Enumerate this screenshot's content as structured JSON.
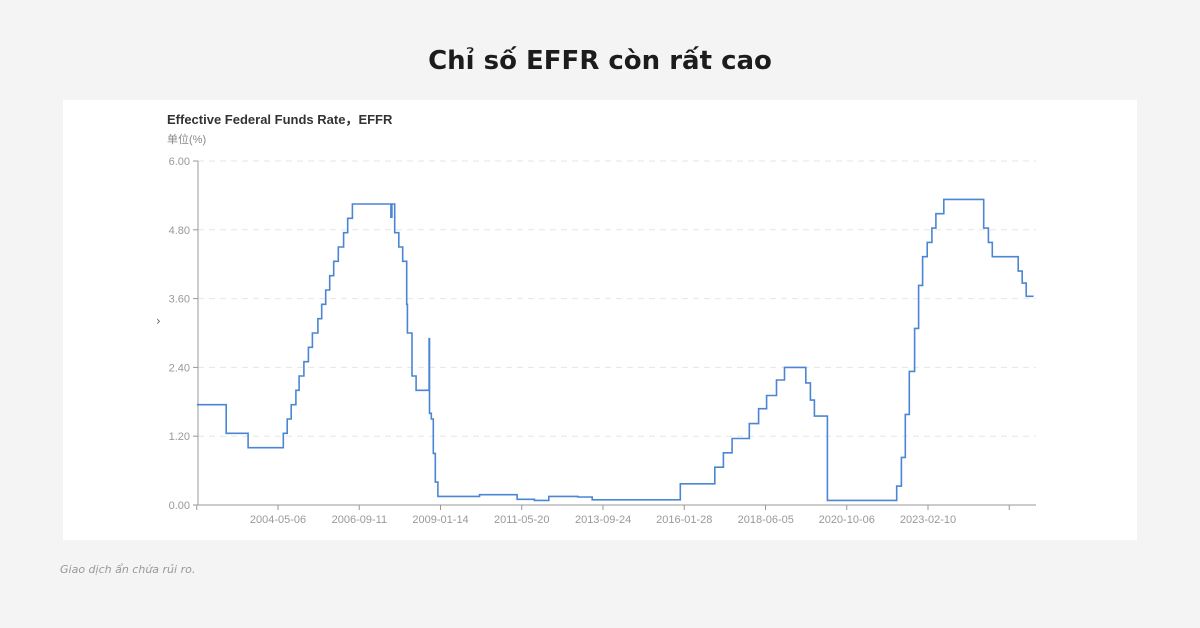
{
  "headline": "Chỉ số EFFR còn rất cao",
  "footer": "Giao dịch ẩn chứa rủi ro.",
  "chart_nav_icon": "chevron-right-icon",
  "chart_data": {
    "type": "line",
    "title": "Effective Federal Funds Rate，EFFR",
    "unit_label": "单位(%)",
    "xlabel": "",
    "ylabel": "",
    "ylim": [
      0,
      6
    ],
    "yticks": [
      "0.00",
      "1.20",
      "2.40",
      "3.60",
      "4.80",
      "6.00"
    ],
    "xticks": [
      "2004-05-06",
      "2006-09-11",
      "2009-01-14",
      "2011-05-20",
      "2013-09-24",
      "2016-01-28",
      "2018-06-05",
      "2020-10-06",
      "2023-02-10"
    ],
    "xlim": [
      "2002-01-02",
      "2026-02-27"
    ],
    "grid": "horizontal dashed",
    "line_color": "#4a86d4",
    "series": [
      {
        "points": [
          [
            "2002-01-02",
            1.75
          ],
          [
            "2002-11-07",
            1.25
          ],
          [
            "2003-06-26",
            1.0
          ],
          [
            "2004-07-01",
            1.25
          ],
          [
            "2004-08-11",
            1.5
          ],
          [
            "2004-09-22",
            1.75
          ],
          [
            "2004-11-11",
            2.0
          ],
          [
            "2004-12-15",
            2.25
          ],
          [
            "2005-02-03",
            2.5
          ],
          [
            "2005-03-23",
            2.75
          ],
          [
            "2005-05-04",
            3.0
          ],
          [
            "2005-07-01",
            3.25
          ],
          [
            "2005-08-10",
            3.5
          ],
          [
            "2005-09-21",
            3.75
          ],
          [
            "2005-11-02",
            4.0
          ],
          [
            "2005-12-14",
            4.25
          ],
          [
            "2006-02-01",
            4.5
          ],
          [
            "2006-03-29",
            4.75
          ],
          [
            "2006-05-11",
            5.0
          ],
          [
            "2006-06-30",
            5.25
          ],
          [
            "2007-08-10",
            5.02
          ],
          [
            "2007-08-20",
            5.25
          ],
          [
            "2007-09-19",
            4.75
          ],
          [
            "2007-11-01",
            4.5
          ],
          [
            "2007-12-12",
            4.25
          ],
          [
            "2008-01-23",
            3.5
          ],
          [
            "2008-01-31",
            3.0
          ],
          [
            "2008-03-19",
            2.25
          ],
          [
            "2008-05-01",
            2.0
          ],
          [
            "2008-09-15",
            2.9
          ],
          [
            "2008-09-20",
            1.6
          ],
          [
            "2008-10-09",
            1.5
          ],
          [
            "2008-10-30",
            0.9
          ],
          [
            "2008-11-20",
            0.4
          ],
          [
            "2008-12-17",
            0.15
          ],
          [
            "2010-03-01",
            0.18
          ],
          [
            "2011-04-01",
            0.1
          ],
          [
            "2011-10-01",
            0.08
          ],
          [
            "2012-03-01",
            0.15
          ],
          [
            "2013-01-01",
            0.14
          ],
          [
            "2013-06-01",
            0.09
          ],
          [
            "2014-06-01",
            0.09
          ],
          [
            "2015-12-17",
            0.37
          ],
          [
            "2016-12-15",
            0.66
          ],
          [
            "2017-03-16",
            0.91
          ],
          [
            "2017-06-15",
            1.16
          ],
          [
            "2017-12-14",
            1.42
          ],
          [
            "2018-03-22",
            1.68
          ],
          [
            "2018-06-14",
            1.91
          ],
          [
            "2018-09-27",
            2.18
          ],
          [
            "2018-12-20",
            2.4
          ],
          [
            "2019-08-01",
            2.13
          ],
          [
            "2019-09-19",
            1.83
          ],
          [
            "2019-10-31",
            1.55
          ],
          [
            "2020-03-16",
            0.08
          ],
          [
            "2022-03-17",
            0.33
          ],
          [
            "2022-05-05",
            0.83
          ],
          [
            "2022-06-16",
            1.58
          ],
          [
            "2022-07-28",
            2.33
          ],
          [
            "2022-09-22",
            3.08
          ],
          [
            "2022-11-03",
            3.83
          ],
          [
            "2022-12-15",
            4.33
          ],
          [
            "2023-02-02",
            4.58
          ],
          [
            "2023-03-23",
            4.83
          ],
          [
            "2023-05-04",
            5.08
          ],
          [
            "2023-07-27",
            5.33
          ],
          [
            "2024-09-19",
            4.83
          ],
          [
            "2024-11-08",
            4.58
          ],
          [
            "2024-12-19",
            4.33
          ],
          [
            "2025-09-18",
            4.08
          ],
          [
            "2025-10-30",
            3.87
          ],
          [
            "2025-12-11",
            3.64
          ],
          [
            "2026-02-27",
            3.64
          ]
        ]
      }
    ]
  }
}
